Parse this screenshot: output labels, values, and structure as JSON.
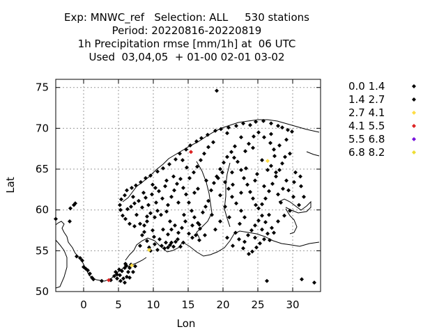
{
  "title_lines": [
    "Exp: MNWC_ref   Selection: ALL     530 stations",
    "Period: 20220816-20220819",
    "1h Precipitation rmse [mm/1h] at  06 UTC",
    "Used  03,04,05  + 01-00 02-01 03-02"
  ],
  "chart_data": {
    "type": "scatter",
    "xlabel": "Lon",
    "ylabel": "Lat",
    "xlim": [
      -4,
      34
    ],
    "ylim": [
      50,
      76
    ],
    "xticks": [
      0,
      5,
      10,
      15,
      20,
      25,
      30
    ],
    "yticks": [
      50,
      55,
      60,
      65,
      70,
      75
    ],
    "grid": true,
    "legend_position": "right",
    "series": [
      {
        "name": "0.0 1.4",
        "color": "#000000",
        "points": [
          [
            -4.0,
            58.9
          ],
          [
            -2.0,
            58.6
          ],
          [
            -1.9,
            60.2
          ],
          [
            -1.4,
            60.6
          ],
          [
            -1.2,
            60.8
          ],
          [
            -1.0,
            54.3
          ],
          [
            -0.5,
            54.1
          ],
          [
            -0.2,
            53.8
          ],
          [
            0.0,
            53.0
          ],
          [
            0.3,
            52.8
          ],
          [
            0.6,
            52.6
          ],
          [
            0.9,
            52.2
          ],
          [
            1.2,
            51.7
          ],
          [
            1.4,
            51.5
          ],
          [
            2.6,
            51.3
          ],
          [
            3.9,
            51.4
          ],
          [
            4.4,
            51.9
          ],
          [
            4.6,
            52.4
          ],
          [
            4.8,
            52.1
          ],
          [
            5.1,
            52.7
          ],
          [
            5.2,
            52.0
          ],
          [
            5.5,
            52.5
          ],
          [
            5.7,
            51.6
          ],
          [
            5.9,
            52.9
          ],
          [
            6.1,
            53.2
          ],
          [
            6.2,
            51.8
          ],
          [
            6.4,
            52.4
          ],
          [
            6.6,
            52.9
          ],
          [
            6.8,
            53.3
          ],
          [
            7.1,
            52.4
          ],
          [
            7.4,
            53.1
          ],
          [
            5.3,
            51.3
          ],
          [
            5.9,
            51.1
          ],
          [
            4.8,
            51.6
          ],
          [
            6.6,
            51.7
          ],
          [
            6.0,
            53.4
          ],
          [
            8.1,
            55.6
          ],
          [
            8.4,
            56.9
          ],
          [
            8.7,
            57.3
          ],
          [
            9.1,
            56.2
          ],
          [
            9.4,
            55.4
          ],
          [
            9.6,
            55.0
          ],
          [
            9.9,
            57.5
          ],
          [
            10.1,
            56.7
          ],
          [
            10.2,
            55.8
          ],
          [
            10.6,
            55.1
          ],
          [
            10.9,
            56.4
          ],
          [
            11.2,
            55.6
          ],
          [
            11.6,
            55.3
          ],
          [
            11.8,
            56.0
          ],
          [
            12.1,
            55.4
          ],
          [
            12.4,
            55.7
          ],
          [
            12.6,
            56.0
          ],
          [
            12.9,
            55.5
          ],
          [
            13.2,
            56.1
          ],
          [
            13.5,
            56.4
          ],
          [
            8.7,
            58.1
          ],
          [
            8.1,
            58.3
          ],
          [
            7.3,
            58.0
          ],
          [
            6.6,
            58.3
          ],
          [
            6.0,
            58.9
          ],
          [
            5.6,
            59.3
          ],
          [
            5.3,
            60.0
          ],
          [
            5.2,
            60.6
          ],
          [
            5.4,
            61.3
          ],
          [
            5.9,
            61.8
          ],
          [
            6.2,
            62.4
          ],
          [
            6.9,
            62.7
          ],
          [
            7.5,
            63.0
          ],
          [
            8.2,
            63.4
          ],
          [
            8.9,
            63.9
          ],
          [
            9.6,
            64.2
          ],
          [
            10.6,
            64.7
          ],
          [
            11.4,
            65.1
          ],
          [
            12.3,
            65.6
          ],
          [
            13.2,
            66.2
          ],
          [
            13.8,
            66.9
          ],
          [
            14.7,
            67.4
          ],
          [
            15.3,
            67.9
          ],
          [
            16.2,
            68.4
          ],
          [
            16.9,
            68.8
          ],
          [
            17.8,
            69.2
          ],
          [
            18.9,
            69.7
          ],
          [
            19.7,
            69.9
          ],
          [
            20.8,
            70.1
          ],
          [
            21.9,
            70.3
          ],
          [
            22.9,
            70.6
          ],
          [
            23.9,
            70.4
          ],
          [
            24.7,
            70.8
          ],
          [
            25.8,
            70.9
          ],
          [
            26.9,
            70.6
          ],
          [
            27.9,
            70.3
          ],
          [
            28.5,
            70.1
          ],
          [
            29.3,
            69.8
          ],
          [
            29.9,
            69.6
          ],
          [
            6.8,
            60.4
          ],
          [
            7.3,
            60.8
          ],
          [
            7.9,
            61.1
          ],
          [
            8.4,
            60.3
          ],
          [
            8.9,
            61.5
          ],
          [
            9.3,
            60.6
          ],
          [
            9.8,
            61.9
          ],
          [
            10.4,
            60.9
          ],
          [
            10.8,
            62.3
          ],
          [
            11.3,
            61.4
          ],
          [
            11.7,
            62.9
          ],
          [
            11.9,
            59.8
          ],
          [
            11.1,
            59.4
          ],
          [
            10.6,
            59.9
          ],
          [
            10.2,
            59.1
          ],
          [
            9.6,
            59.6
          ],
          [
            9.1,
            59.2
          ],
          [
            12.1,
            60.6
          ],
          [
            12.6,
            61.6
          ],
          [
            13.0,
            62.4
          ],
          [
            13.4,
            63.2
          ],
          [
            13.9,
            63.8
          ],
          [
            14.3,
            62.7
          ],
          [
            14.7,
            61.9
          ],
          [
            15.1,
            60.9
          ],
          [
            15.5,
            59.9
          ],
          [
            15.9,
            59.1
          ],
          [
            16.4,
            58.4
          ],
          [
            16.7,
            57.7
          ],
          [
            17.1,
            59.7
          ],
          [
            17.5,
            60.4
          ],
          [
            17.9,
            61.1
          ],
          [
            18.3,
            62.4
          ],
          [
            18.7,
            63.3
          ],
          [
            19.1,
            64.1
          ],
          [
            19.6,
            65.0
          ],
          [
            20.1,
            65.8
          ],
          [
            20.6,
            66.5
          ],
          [
            21.2,
            67.1
          ],
          [
            21.7,
            67.8
          ],
          [
            22.1,
            65.9
          ],
          [
            22.6,
            64.9
          ],
          [
            23.0,
            63.9
          ],
          [
            23.5,
            63.1
          ],
          [
            23.9,
            62.2
          ],
          [
            24.3,
            61.4
          ],
          [
            24.7,
            60.6
          ],
          [
            25.1,
            60.2
          ],
          [
            25.6,
            60.7
          ],
          [
            26.1,
            61.4
          ],
          [
            26.6,
            62.3
          ],
          [
            27.1,
            63.2
          ],
          [
            27.6,
            64.1
          ],
          [
            28.1,
            64.9
          ],
          [
            28.5,
            65.7
          ],
          [
            28.9,
            66.5
          ],
          [
            27.3,
            67.4
          ],
          [
            26.8,
            68.2
          ],
          [
            25.9,
            68.9
          ],
          [
            25.1,
            69.5
          ],
          [
            24.4,
            69.0
          ],
          [
            23.7,
            68.1
          ],
          [
            23.2,
            67.2
          ],
          [
            13.1,
            58.1
          ],
          [
            12.6,
            57.6
          ],
          [
            12.1,
            57.0
          ],
          [
            13.6,
            57.2
          ],
          [
            14.1,
            57.8
          ],
          [
            14.6,
            58.6
          ],
          [
            15.1,
            57.1
          ],
          [
            15.6,
            56.6
          ],
          [
            16.1,
            56.9
          ],
          [
            16.6,
            56.3
          ],
          [
            14.3,
            56.0
          ],
          [
            13.9,
            55.5
          ],
          [
            23.1,
            56.1
          ],
          [
            23.6,
            56.9
          ],
          [
            24.1,
            57.5
          ],
          [
            24.6,
            58.1
          ],
          [
            25.1,
            58.7
          ],
          [
            25.6,
            59.3
          ],
          [
            26.1,
            58.5
          ],
          [
            26.6,
            59.4
          ],
          [
            27.0,
            57.8
          ],
          [
            26.4,
            57.1
          ],
          [
            25.9,
            56.4
          ],
          [
            25.3,
            55.9
          ],
          [
            24.8,
            55.4
          ],
          [
            24.2,
            54.9
          ],
          [
            23.7,
            54.6
          ],
          [
            22.9,
            55.3
          ],
          [
            22.3,
            56.4
          ],
          [
            21.8,
            57.2
          ],
          [
            22.4,
            58.3
          ],
          [
            23.1,
            59.1
          ],
          [
            22.6,
            59.9
          ],
          [
            21.9,
            60.8
          ],
          [
            21.3,
            61.6
          ],
          [
            20.8,
            62.6
          ],
          [
            20.3,
            63.4
          ],
          [
            19.9,
            64.6
          ],
          [
            18.6,
            68.3
          ],
          [
            17.9,
            67.7
          ],
          [
            17.3,
            66.9
          ],
          [
            16.8,
            66.1
          ],
          [
            16.3,
            65.3
          ],
          [
            15.8,
            64.6
          ],
          [
            15.2,
            63.9
          ],
          [
            14.8,
            65.2
          ],
          [
            14.2,
            66.1
          ],
          [
            19.1,
            74.6
          ],
          [
            26.3,
            51.3
          ],
          [
            31.3,
            51.5
          ],
          [
            33.1,
            51.1
          ]
        ]
      },
      {
        "name": "1.4 2.7",
        "color": "#000000",
        "points": [
          [
            6.3,
            60.1
          ],
          [
            7.6,
            59.4
          ],
          [
            9.9,
            63.1
          ],
          [
            12.9,
            64.1
          ],
          [
            16.4,
            62.6
          ],
          [
            18.4,
            59.4
          ],
          [
            20.3,
            60.4
          ],
          [
            21.4,
            63.1
          ],
          [
            24.9,
            64.4
          ],
          [
            26.9,
            65.4
          ],
          [
            27.9,
            61.9
          ],
          [
            28.3,
            60.9
          ],
          [
            29.4,
            62.4
          ],
          [
            30.2,
            63.4
          ],
          [
            31.2,
            62.9
          ],
          [
            31.6,
            61.6
          ],
          [
            30.9,
            60.6
          ],
          [
            29.6,
            59.9
          ],
          [
            28.8,
            59.3
          ],
          [
            27.9,
            58.6
          ],
          [
            27.3,
            57.2
          ],
          [
            26.7,
            56.3
          ],
          [
            22.6,
            62.1
          ],
          [
            19.6,
            61.8
          ],
          [
            17.6,
            63.6
          ],
          [
            15.9,
            62.1
          ],
          [
            13.6,
            60.9
          ],
          [
            11.9,
            63.6
          ],
          [
            10.3,
            62.7
          ],
          [
            8.6,
            62.1
          ],
          [
            7.1,
            61.6
          ],
          [
            9.1,
            58.6
          ],
          [
            11.4,
            57.6
          ],
          [
            12.4,
            58.6
          ],
          [
            14.4,
            59.4
          ],
          [
            16.6,
            58.2
          ],
          [
            19.3,
            63.9
          ],
          [
            21.3,
            64.6
          ],
          [
            23.3,
            65.1
          ],
          [
            25.6,
            66.1
          ],
          [
            27.4,
            66.6
          ],
          [
            28.1,
            67.9
          ],
          [
            29.1,
            68.6
          ],
          [
            26.9,
            69.3
          ],
          [
            27.6,
            64.6
          ],
          [
            24.3,
            67.6
          ],
          [
            22.6,
            68.9
          ],
          [
            20.6,
            69.4
          ],
          [
            21.6,
            66.4
          ],
          [
            29.6,
            66.9
          ],
          [
            30.4,
            64.6
          ],
          [
            31.1,
            64.1
          ],
          [
            30.1,
            61.6
          ],
          [
            28.6,
            62.6
          ],
          [
            29.1,
            63.6
          ],
          [
            24.6,
            63.6
          ],
          [
            25.9,
            62.9
          ],
          [
            26.4,
            64.9
          ],
          [
            20.9,
            59.1
          ],
          [
            19.6,
            58.6
          ],
          [
            18.9,
            57.6
          ],
          [
            17.4,
            56.9
          ],
          [
            15.6,
            58.1
          ],
          [
            20.6,
            56.6
          ],
          [
            21.4,
            55.6
          ],
          [
            24.6,
            56.6
          ],
          [
            25.6,
            57.6
          ]
        ]
      },
      {
        "name": "2.7 4.1",
        "color": "#ffdd44",
        "points": [
          [
            26.4,
            66.0
          ],
          [
            9.4,
            55.1
          ],
          [
            6.9,
            53.2
          ]
        ]
      },
      {
        "name": "4.1 5.5",
        "color": "#dd2222",
        "points": [
          [
            15.4,
            67.1
          ],
          [
            3.6,
            51.4
          ]
        ]
      },
      {
        "name": "5.5 6.8",
        "color": "#7711dd",
        "points": []
      },
      {
        "name": "6.8 8.2",
        "color": "#eedd33",
        "points": []
      }
    ]
  }
}
